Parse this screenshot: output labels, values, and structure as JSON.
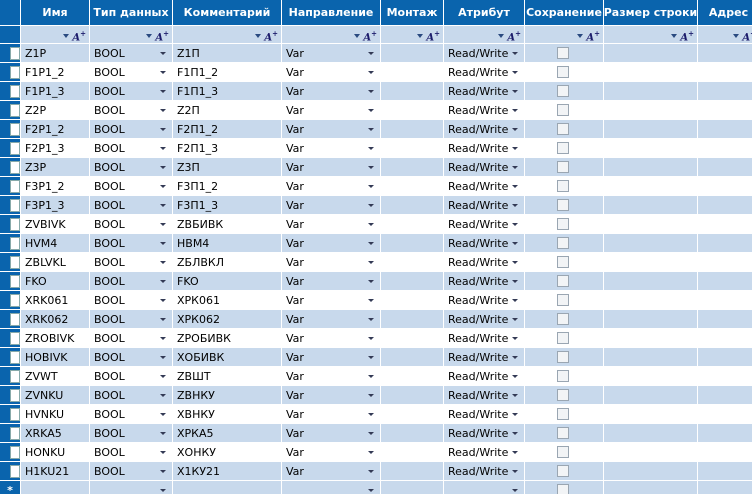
{
  "columns": {
    "name": "Имя",
    "type": "Тип данных",
    "comment": "Комментарий",
    "direction": "Направление",
    "mount": "Монтаж",
    "attribute": "Атрибут",
    "save": "Сохранение",
    "size": "Размер строки",
    "address": "Адрес"
  },
  "filter_icon_label": "A",
  "new_row_marker": "*",
  "rows": [
    {
      "name": "Z1P",
      "type": "BOOL",
      "comment": "Z1П",
      "direction": "Var",
      "attribute": "Read/Write"
    },
    {
      "name": "F1P1_2",
      "type": "BOOL",
      "comment": "F1П1_2",
      "direction": "Var",
      "attribute": "Read/Write"
    },
    {
      "name": "F1P1_3",
      "type": "BOOL",
      "comment": "F1П1_3",
      "direction": "Var",
      "attribute": "Read/Write"
    },
    {
      "name": "Z2P",
      "type": "BOOL",
      "comment": "Z2П",
      "direction": "Var",
      "attribute": "Read/Write"
    },
    {
      "name": "F2P1_2",
      "type": "BOOL",
      "comment": "F2П1_2",
      "direction": "Var",
      "attribute": "Read/Write"
    },
    {
      "name": "F2P1_3",
      "type": "BOOL",
      "comment": "F2П1_3",
      "direction": "Var",
      "attribute": "Read/Write"
    },
    {
      "name": "Z3P",
      "type": "BOOL",
      "comment": "Z3П",
      "direction": "Var",
      "attribute": "Read/Write"
    },
    {
      "name": "F3P1_2",
      "type": "BOOL",
      "comment": "F3П1_2",
      "direction": "Var",
      "attribute": "Read/Write"
    },
    {
      "name": "F3P1_3",
      "type": "BOOL",
      "comment": "F3П1_3",
      "direction": "Var",
      "attribute": "Read/Write"
    },
    {
      "name": "ZVBIVK",
      "type": "BOOL",
      "comment": "ZВБИВК",
      "direction": "Var",
      "attribute": "Read/Write"
    },
    {
      "name": "HVM4",
      "type": "BOOL",
      "comment": "НВМ4",
      "direction": "Var",
      "attribute": "Read/Write"
    },
    {
      "name": "ZBLVKL",
      "type": "BOOL",
      "comment": "ZБЛВКЛ",
      "direction": "Var",
      "attribute": "Read/Write"
    },
    {
      "name": "FKO",
      "type": "BOOL",
      "comment": "FKO",
      "direction": "Var",
      "attribute": "Read/Write"
    },
    {
      "name": "XRK061",
      "type": "BOOL",
      "comment": "ХРК061",
      "direction": "Var",
      "attribute": "Read/Write"
    },
    {
      "name": "XRK062",
      "type": "BOOL",
      "comment": "ХРК062",
      "direction": "Var",
      "attribute": "Read/Write"
    },
    {
      "name": "ZROBIVK",
      "type": "BOOL",
      "comment": "ZРОБИВК",
      "direction": "Var",
      "attribute": "Read/Write"
    },
    {
      "name": "HOBIVK",
      "type": "BOOL",
      "comment": "ХОБИВК",
      "direction": "Var",
      "attribute": "Read/Write"
    },
    {
      "name": "ZVWT",
      "type": "BOOL",
      "comment": "ZВШТ",
      "direction": "Var",
      "attribute": "Read/Write"
    },
    {
      "name": "ZVNKU",
      "type": "BOOL",
      "comment": "ZВНКУ",
      "direction": "Var",
      "attribute": "Read/Write"
    },
    {
      "name": "HVNKU",
      "type": "BOOL",
      "comment": "ХВНКУ",
      "direction": "Var",
      "attribute": "Read/Write"
    },
    {
      "name": "XRKA5",
      "type": "BOOL",
      "comment": "ХРКА5",
      "direction": "Var",
      "attribute": "Read/Write"
    },
    {
      "name": "HONKU",
      "type": "BOOL",
      "comment": "ХОНКУ",
      "direction": "Var",
      "attribute": "Read/Write"
    },
    {
      "name": "H1KU21",
      "type": "BOOL",
      "comment": "Х1КУ21",
      "direction": "Var",
      "attribute": "Read/Write"
    }
  ],
  "colors": {
    "header_bg": "#0a64ad",
    "alt_row_bg": "#c8d9ec",
    "row_bg": "#ffffff"
  }
}
